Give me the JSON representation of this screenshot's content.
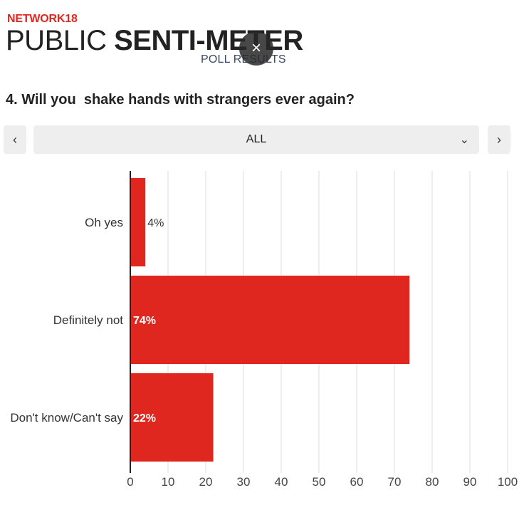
{
  "header": {
    "brand": "NETWORK18",
    "title_light": "PUBLIC ",
    "title_bold": "SENTI-METER",
    "subtitle": "POLL RESULTS",
    "close_glyph": "×"
  },
  "question": "4. Will you  shake hands with strangers ever again?",
  "filter": {
    "prev_glyph": "‹",
    "next_glyph": "›",
    "selected": "ALL",
    "chevron_glyph": "⌄"
  },
  "colors": {
    "bar": "#e0271f",
    "brand": "#e0271f",
    "grid": "#dddddd",
    "axis": "#222222"
  },
  "chart_data": {
    "type": "bar",
    "orientation": "horizontal",
    "categories": [
      "Oh yes",
      "Definitely not",
      "Don't know/Can't say"
    ],
    "values": [
      4,
      74,
      22
    ],
    "value_labels": [
      "4%",
      "74%",
      "22%"
    ],
    "xlim": [
      0,
      100
    ],
    "xticks": [
      "0",
      "10",
      "20",
      "30",
      "40",
      "50",
      "60",
      "70",
      "80",
      "90",
      "100"
    ],
    "grid": true,
    "title": "",
    "xlabel": "",
    "ylabel": ""
  }
}
